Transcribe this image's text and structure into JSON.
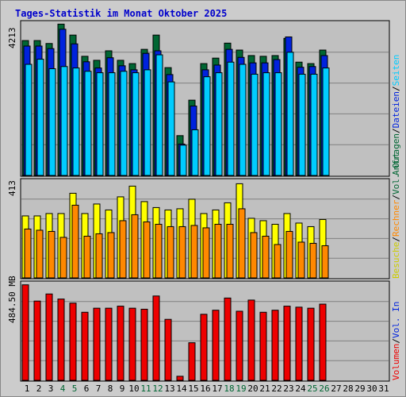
{
  "title": "Tages-Statistik im Monat Oktober 2025",
  "colors": {
    "anfragen": "#006633",
    "dateien": "#0022dd",
    "seiten": "#00ccff",
    "besuche": "#ffff00",
    "rechner": "#ff8800",
    "volumen": "#ee0000",
    "title": "#0000cc",
    "weekend": "#006633",
    "weekday": "#000000"
  },
  "panels": {
    "top": {
      "max_label": "4213",
      "legend": [
        {
          "text": "Anfragen",
          "color": "#006633"
        },
        {
          "text": "/",
          "color": "#000000"
        },
        {
          "text": "Dateien",
          "color": "#0022dd"
        },
        {
          "text": "/",
          "color": "#000000"
        },
        {
          "text": "Seiten",
          "color": "#00ccff"
        }
      ]
    },
    "middle": {
      "max_label": "413",
      "legend": [
        {
          "text": "Besuche",
          "color": "#cccc00"
        },
        {
          "text": "/",
          "color": "#000000"
        },
        {
          "text": "Rechner",
          "color": "#ff8800"
        },
        {
          "text": "/",
          "color": "#000000"
        },
        {
          "text": "Vol. Out",
          "color": "#006633"
        }
      ]
    },
    "bottom": {
      "max_label": "484.50 MB",
      "legend": [
        {
          "text": "Volumen",
          "color": "#ee0000"
        },
        {
          "text": "/",
          "color": "#000000"
        },
        {
          "text": "Vol. In",
          "color": "#0022dd"
        }
      ]
    }
  },
  "chart_data": {
    "type": "bar",
    "title": "Tages-Statistik im Monat Oktober 2025",
    "categories": [
      "1",
      "2",
      "3",
      "4",
      "5",
      "6",
      "7",
      "8",
      "9",
      "10",
      "11",
      "12",
      "13",
      "14",
      "15",
      "16",
      "17",
      "18",
      "19",
      "20",
      "21",
      "22",
      "23",
      "24",
      "25",
      "26",
      "27",
      "28",
      "29",
      "30",
      "31"
    ],
    "weekend_days": [
      4,
      5,
      11,
      12,
      18,
      19,
      25,
      26
    ],
    "top": {
      "ylim": [
        0,
        4213
      ],
      "series": [
        {
          "name": "Anfragen",
          "values": [
            3690,
            3690,
            3610,
            4140,
            3840,
            3260,
            3150,
            3410,
            3150,
            3060,
            3450,
            3840,
            2950,
            1090,
            2060,
            3060,
            3210,
            3620,
            3430,
            3280,
            3260,
            3280,
            3750,
            3100,
            3060,
            3430,
            0,
            0,
            0,
            0,
            0
          ]
        },
        {
          "name": "Dateien",
          "values": [
            3540,
            3540,
            3470,
            4000,
            3600,
            3110,
            2940,
            3220,
            3000,
            2890,
            3340,
            3410,
            2760,
            860,
            1900,
            2890,
            3020,
            3450,
            3230,
            3080,
            3080,
            3170,
            3790,
            2960,
            2980,
            3280,
            0,
            0,
            0,
            0,
            0
          ]
        },
        {
          "name": "Seiten",
          "values": [
            3040,
            3180,
            2920,
            2980,
            2940,
            2850,
            2810,
            2810,
            2850,
            2810,
            2890,
            3300,
            2560,
            830,
            1250,
            2700,
            2810,
            3100,
            3040,
            2770,
            2810,
            2810,
            3370,
            2770,
            2770,
            2940,
            0,
            0,
            0,
            0,
            0
          ]
        }
      ]
    },
    "middle": {
      "ylim": [
        0,
        413
      ],
      "series": [
        {
          "name": "Besuche",
          "values": [
            260,
            260,
            270,
            270,
            355,
            270,
            310,
            285,
            340,
            385,
            320,
            295,
            285,
            290,
            330,
            270,
            285,
            315,
            395,
            250,
            240,
            225,
            270,
            230,
            215,
            245,
            0,
            0,
            0,
            0,
            0
          ]
        },
        {
          "name": "Rechner",
          "values": [
            205,
            200,
            195,
            170,
            305,
            175,
            185,
            190,
            240,
            265,
            235,
            225,
            215,
            215,
            220,
            210,
            225,
            225,
            290,
            190,
            175,
            140,
            195,
            150,
            145,
            135,
            0,
            0,
            0,
            0,
            0
          ]
        }
      ]
    },
    "bottom": {
      "ylim": [
        0,
        484.5
      ],
      "series": [
        {
          "name": "Volumen",
          "values": [
            470,
            390,
            425,
            400,
            380,
            335,
            355,
            355,
            365,
            355,
            350,
            415,
            300,
            20,
            185,
            325,
            345,
            405,
            340,
            395,
            335,
            345,
            365,
            360,
            355,
            375,
            0,
            0,
            0,
            0,
            0
          ]
        }
      ]
    }
  }
}
